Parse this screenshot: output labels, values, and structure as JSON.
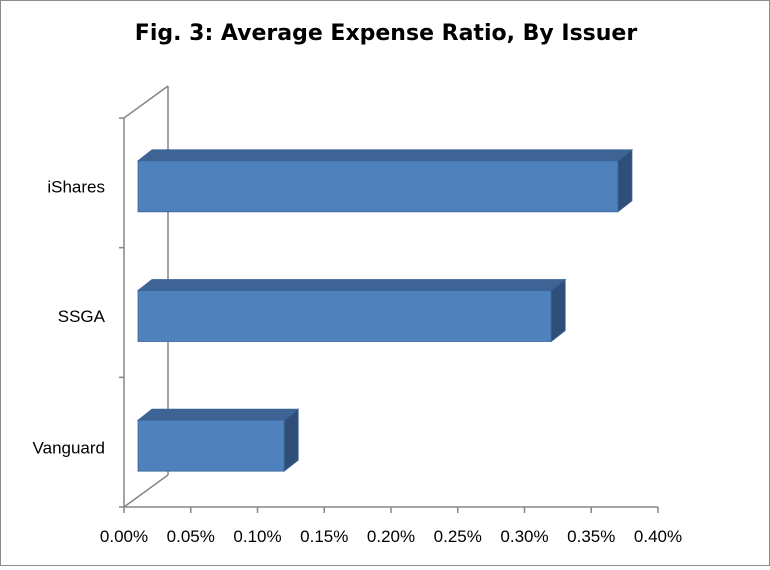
{
  "chart_data": {
    "type": "bar",
    "orientation": "horizontal",
    "style": "3d",
    "title": "Fig. 3: Average Expense Ratio, By Issuer",
    "categories": [
      "iShares",
      "SSGA",
      "Vanguard"
    ],
    "values": [
      0.0037,
      0.0032,
      0.0012
    ],
    "xlim": [
      0,
      0.004
    ],
    "x_ticks": [
      0,
      0.0005,
      0.001,
      0.0015,
      0.002,
      0.0025,
      0.003,
      0.0035,
      0.004
    ],
    "x_tick_labels": [
      "0.00%",
      "0.05%",
      "0.10%",
      "0.15%",
      "0.20%",
      "0.25%",
      "0.30%",
      "0.35%",
      "0.40%"
    ],
    "grid": false,
    "legend": "none",
    "colors": {
      "bar_front": "#4F81BD",
      "bar_top": "#3D6495",
      "bar_side": "#2F4F79",
      "bar_edge": "#3A6398",
      "axis": "#868686"
    }
  }
}
